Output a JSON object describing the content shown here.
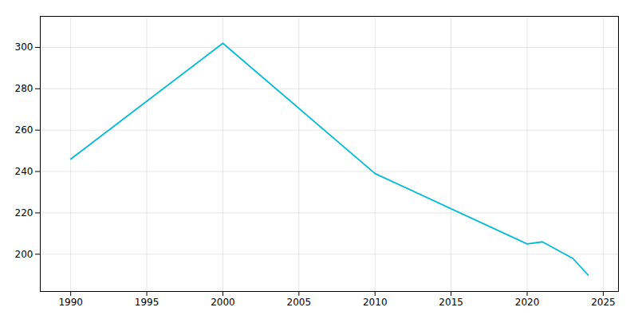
{
  "chart_data": {
    "type": "line",
    "x": [
      1990,
      2000,
      2010,
      2020,
      2021,
      2023,
      2024
    ],
    "values": [
      246,
      302,
      239,
      205,
      206,
      198,
      190
    ],
    "color": "#00BCD4",
    "xlim": [
      1988,
      2026
    ],
    "ylim": [
      182,
      315
    ],
    "xticks": [
      1990,
      1995,
      2000,
      2005,
      2010,
      2015,
      2020,
      2025
    ],
    "yticks": [
      200,
      220,
      240,
      260,
      280,
      300
    ],
    "grid": true
  }
}
